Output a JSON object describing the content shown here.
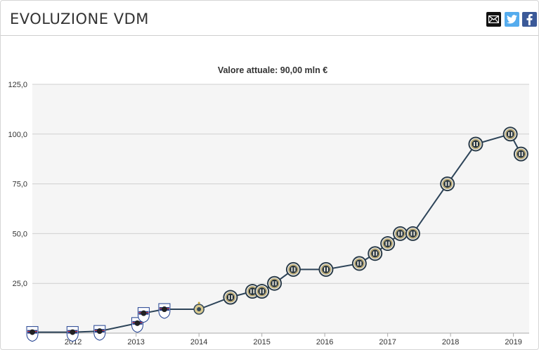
{
  "header": {
    "title": "EVOLUZIONE VDM",
    "share": [
      {
        "name": "email",
        "icon": "envelope-icon",
        "color": "#111111"
      },
      {
        "name": "twitter",
        "icon": "twitter-icon",
        "color": "#55acee"
      },
      {
        "name": "facebook",
        "icon": "facebook-icon",
        "color": "#3b5998"
      }
    ]
  },
  "chart_data": {
    "type": "line",
    "subtitle": "Valore attuale: 90,00 mln €",
    "xlabel": "",
    "ylabel": "",
    "x_ticks": [
      "2012",
      "2013",
      "2014",
      "2015",
      "2016",
      "2017",
      "2018",
      "2019"
    ],
    "y_ticks": [
      "25,0",
      "50,0",
      "75,0",
      "100,0",
      "125,0"
    ],
    "xlim": [
      2011.35,
      2019.25
    ],
    "ylim": [
      0,
      125
    ],
    "grid": true,
    "line_color": "#2d4459",
    "plot_background": "#f5f5f5",
    "series": [
      {
        "values": [
          {
            "x": 2011.35,
            "y": 0.5,
            "club": "sampdoria"
          },
          {
            "x": 2011.99,
            "y": 0.5,
            "club": "sampdoria"
          },
          {
            "x": 2012.42,
            "y": 1.0,
            "club": "sampdoria"
          },
          {
            "x": 2013.02,
            "y": 5.0,
            "club": "sampdoria"
          },
          {
            "x": 2013.12,
            "y": 10.0,
            "club": "sampdoria"
          },
          {
            "x": 2013.45,
            "y": 12.0,
            "club": "sampdoria"
          },
          {
            "x": 2014.0,
            "y": 12.0,
            "club": "inter-youth"
          },
          {
            "x": 2014.5,
            "y": 18.0,
            "club": "inter"
          },
          {
            "x": 2014.85,
            "y": 21.0,
            "club": "inter"
          },
          {
            "x": 2015.0,
            "y": 21.0,
            "club": "inter"
          },
          {
            "x": 2015.2,
            "y": 25.0,
            "club": "inter"
          },
          {
            "x": 2015.5,
            "y": 32.0,
            "club": "inter"
          },
          {
            "x": 2016.02,
            "y": 32.0,
            "club": "inter"
          },
          {
            "x": 2016.55,
            "y": 35.0,
            "club": "inter"
          },
          {
            "x": 2016.8,
            "y": 40.0,
            "club": "inter"
          },
          {
            "x": 2017.0,
            "y": 45.0,
            "club": "inter"
          },
          {
            "x": 2017.2,
            "y": 50.0,
            "club": "inter"
          },
          {
            "x": 2017.4,
            "y": 50.0,
            "club": "inter"
          },
          {
            "x": 2017.95,
            "y": 75.0,
            "club": "inter"
          },
          {
            "x": 2018.4,
            "y": 95.0,
            "club": "inter"
          },
          {
            "x": 2018.95,
            "y": 100.0,
            "club": "inter"
          },
          {
            "x": 2019.12,
            "y": 90.0,
            "club": "inter"
          }
        ]
      }
    ]
  }
}
